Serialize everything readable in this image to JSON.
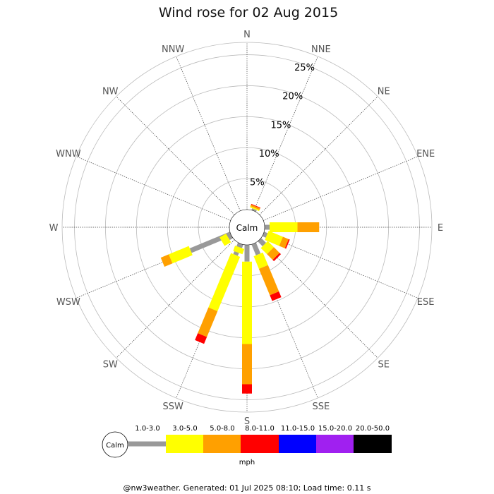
{
  "chart_data": {
    "type": "wind-rose",
    "title": "Wind rose for 02 Aug 2015",
    "directions": [
      "N",
      "NNE",
      "NE",
      "ENE",
      "E",
      "ESE",
      "SE",
      "SSE",
      "S",
      "SSW",
      "SW",
      "WSW",
      "W",
      "WNW",
      "NW",
      "NNW"
    ],
    "rings_percent": [
      5,
      10,
      15,
      20,
      25
    ],
    "ring_labels": [
      "5%",
      "10%",
      "15%",
      "20%",
      "25%"
    ],
    "r_max_percent": 27,
    "calm_label": "Calm",
    "speed_bins": [
      {
        "label": "1.0-3.0",
        "color": "#999999"
      },
      {
        "label": "3.0-5.0",
        "color": "#ffff00"
      },
      {
        "label": "5.0-8.0",
        "color": "#ffa000"
      },
      {
        "label": "8.0-11.0",
        "color": "#ff0000"
      },
      {
        "label": "11.0-15.0",
        "color": "#0000ff"
      },
      {
        "label": "15.0-20.0",
        "color": "#a020f0"
      },
      {
        "label": "20.0-50.0",
        "color": "#000000"
      }
    ],
    "unit_label": "mph",
    "cumulative_percent": {
      "N": [
        0,
        0,
        0,
        0
      ],
      "NNE": [
        0.3,
        0.5,
        0.8,
        0.9
      ],
      "NE": [
        0,
        0,
        0,
        0
      ],
      "ENE": [
        0,
        0,
        0,
        0
      ],
      "E": [
        0.8,
        5.3,
        8.8,
        8.8
      ],
      "ESE": [
        0.6,
        3.1,
        4.1,
        4.3
      ],
      "SE": [
        1.1,
        2.5,
        3.8,
        4.1
      ],
      "SSE": [
        1.9,
        4.1,
        8.7,
        9.7
      ],
      "S": [
        2.7,
        16.0,
        22.5,
        24.0
      ],
      "SSW": [
        2.0,
        11.5,
        16.0,
        17.2
      ],
      "SW": [
        0,
        0,
        0,
        0
      ],
      "WSW": [
        7.0,
        10.5,
        11.9,
        11.9
      ],
      "W": [
        0,
        0,
        0,
        0
      ],
      "WNW": [
        0,
        0,
        0,
        0
      ],
      "NW": [
        0,
        0,
        0,
        0
      ],
      "NNW": [
        0,
        0,
        0,
        0
      ]
    },
    "extra_petals": [
      {
        "angle_deg": 200,
        "cumulative_percent": [
          0.6,
          1.5,
          1.5,
          1.5
        ]
      },
      {
        "angle_deg": 240,
        "cumulative_percent": [
          0.6,
          1.8,
          1.8,
          1.8
        ]
      }
    ]
  },
  "footer": "@nw3weather. Generated: 01 Jul 2025 08:10; Load time: 0.11 s"
}
